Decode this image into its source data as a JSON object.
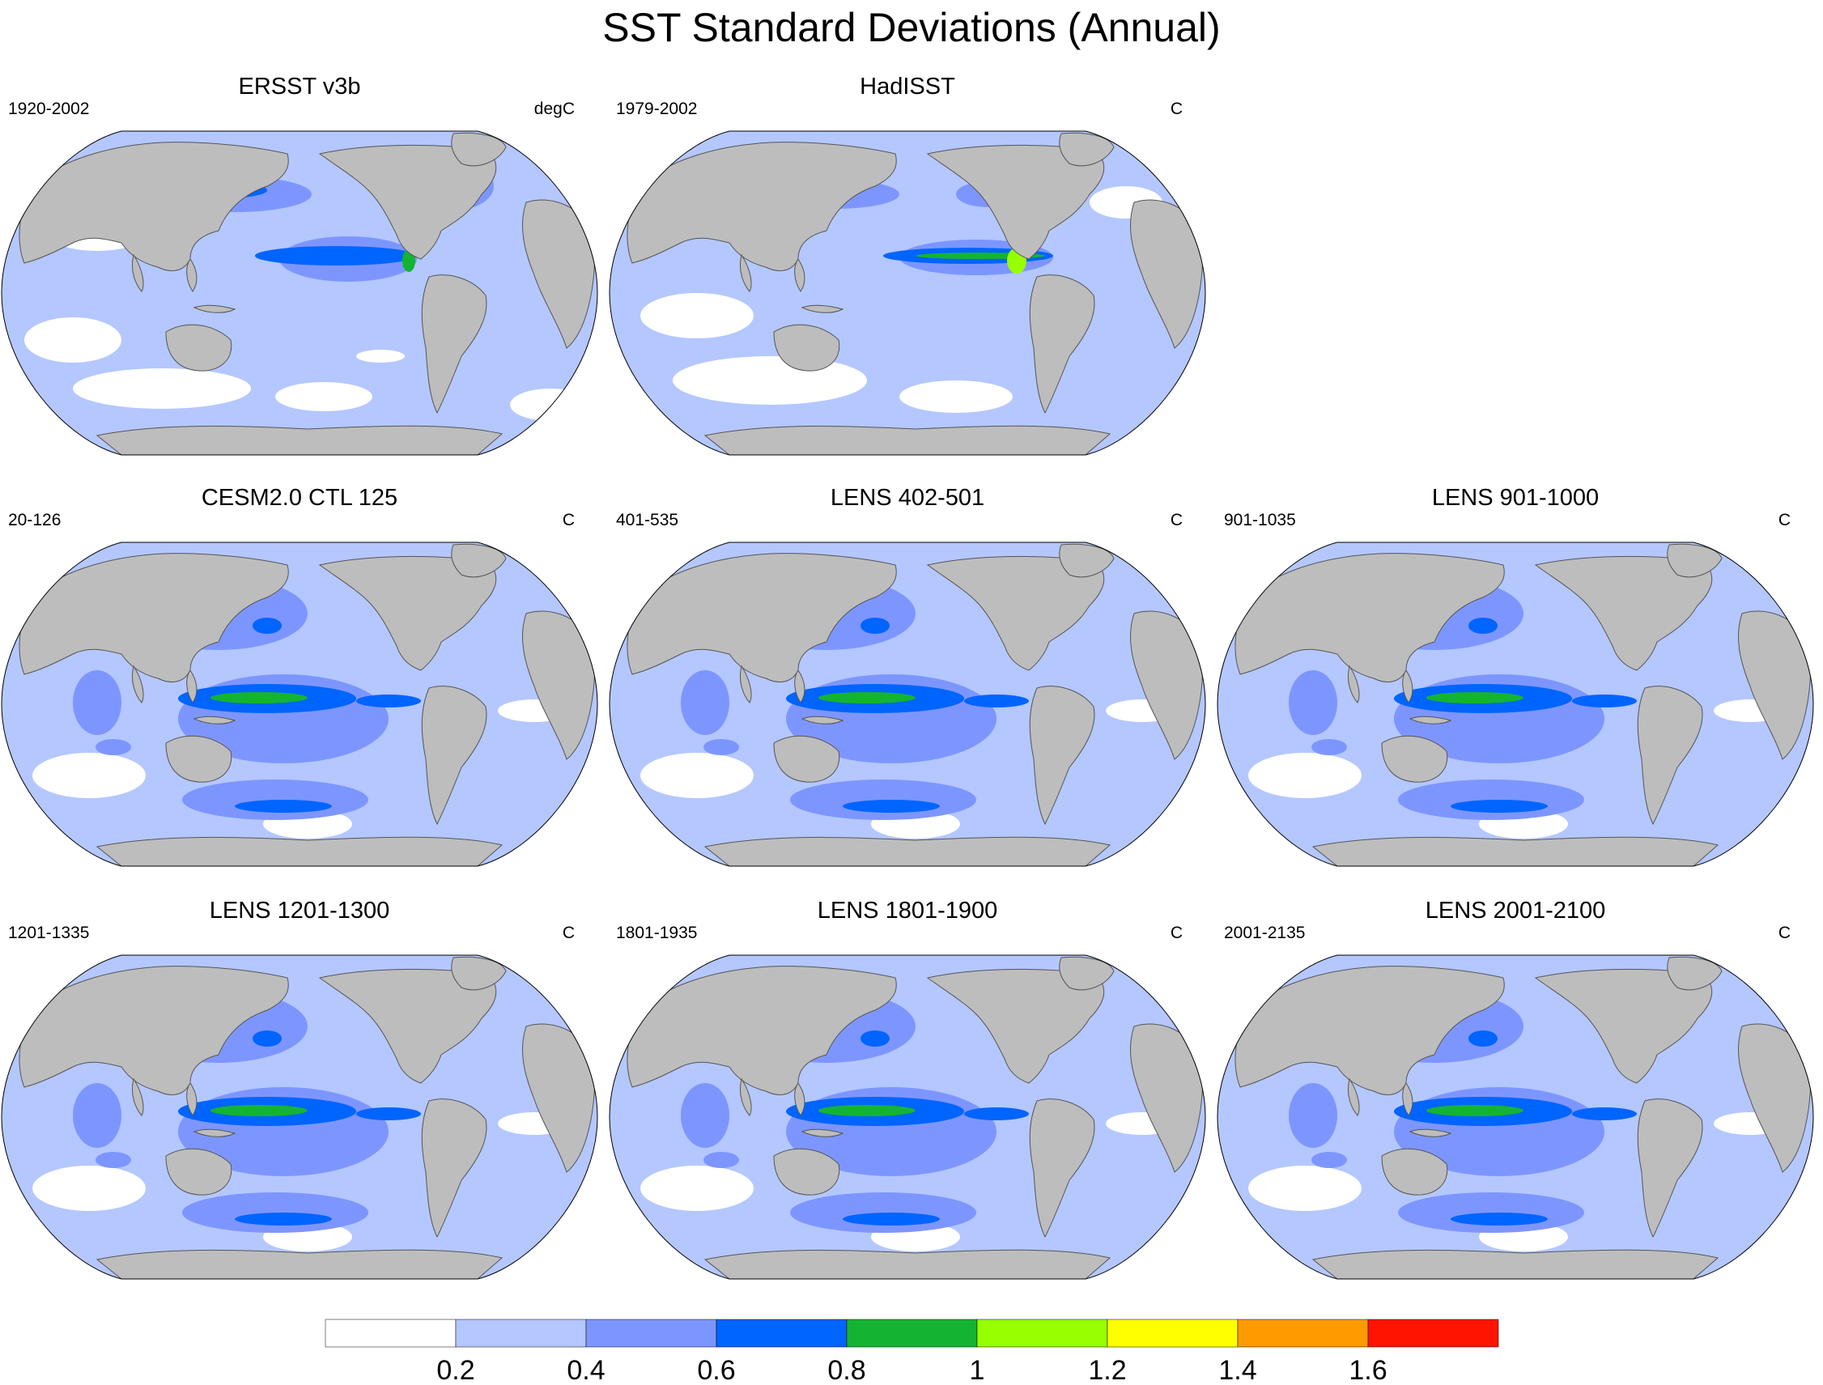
{
  "chart_data": {
    "type": "contour-map",
    "title": "SST Standard Deviations (Annual)",
    "colorbar": {
      "levels": [
        "0.2",
        "0.4",
        "0.6",
        "0.8",
        "1",
        "1.2",
        "1.4",
        "1.6"
      ],
      "colors": [
        "#ffffff",
        "#b4c7ff",
        "#7d96ff",
        "#0064ff",
        "#14b432",
        "#96ff00",
        "#ffff00",
        "#ff9b00",
        "#ff1400"
      ]
    },
    "panels": [
      {
        "title": "ERSST v3b",
        "years": "1920-2002",
        "units": "degC",
        "style": "obs"
      },
      {
        "title": "HadISST",
        "years": "1979-2002",
        "units": "C",
        "style": "obs2"
      },
      {
        "title": "CESM2.0 CTL 125",
        "years": "20-126",
        "units": "C",
        "style": "model"
      },
      {
        "title": "LENS 402-501",
        "years": "401-535",
        "units": "C",
        "style": "model"
      },
      {
        "title": "LENS 901-1000",
        "years": "901-1035",
        "units": "C",
        "style": "model"
      },
      {
        "title": "LENS 1201-1300",
        "years": "1201-1335",
        "units": "C",
        "style": "model"
      },
      {
        "title": "LENS 1801-1900",
        "years": "1801-1935",
        "units": "C",
        "style": "model"
      },
      {
        "title": "LENS 2001-2100",
        "years": "2001-2135",
        "units": "C",
        "style": "model"
      }
    ]
  }
}
